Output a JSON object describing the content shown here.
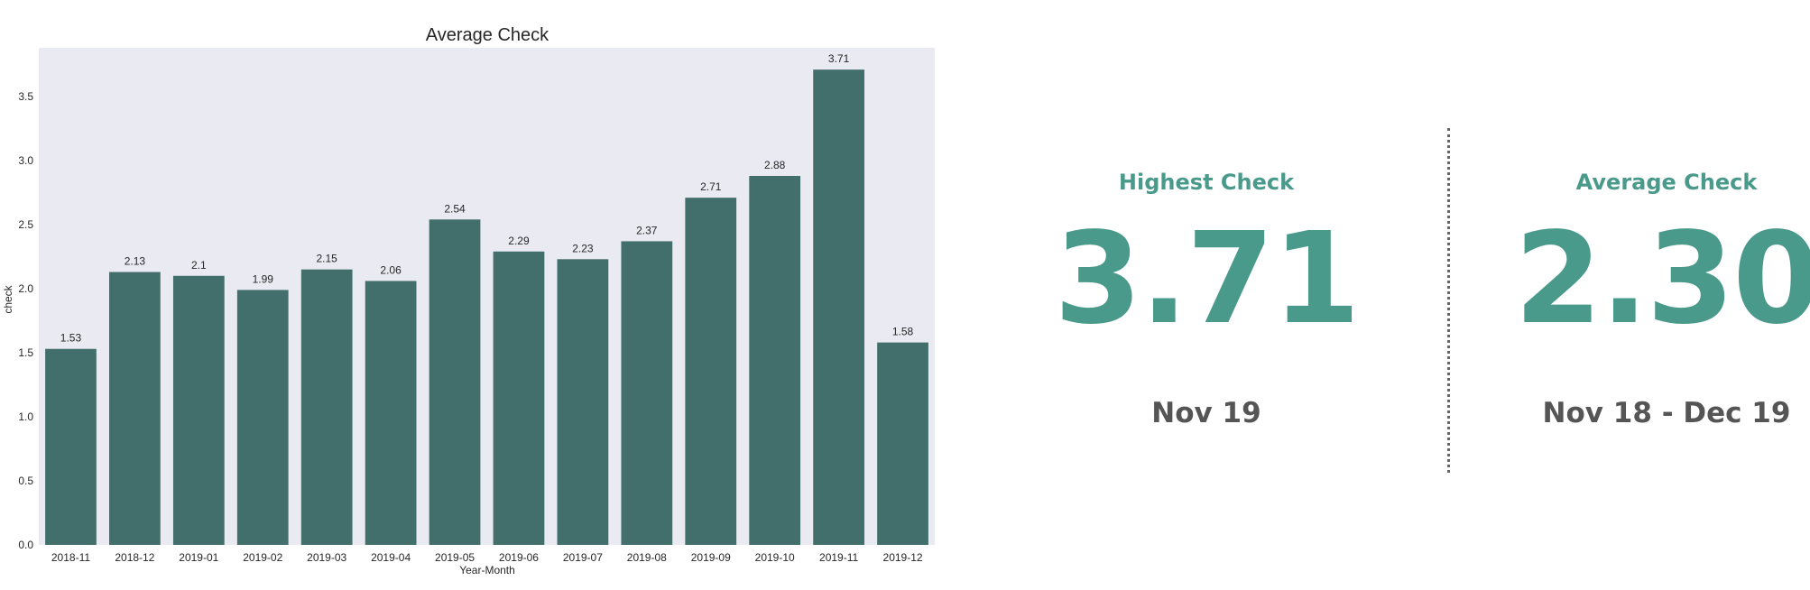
{
  "chart_data": {
    "type": "bar",
    "title": "Average Check",
    "xlabel": "Year-Month",
    "ylabel": "check",
    "categories": [
      "2018-11",
      "2018-12",
      "2019-01",
      "2019-02",
      "2019-03",
      "2019-04",
      "2019-05",
      "2019-06",
      "2019-07",
      "2019-08",
      "2019-09",
      "2019-10",
      "2019-11",
      "2019-12"
    ],
    "values": [
      1.53,
      2.13,
      2.1,
      1.99,
      2.15,
      2.06,
      2.54,
      2.29,
      2.23,
      2.37,
      2.71,
      2.88,
      3.71,
      1.58
    ],
    "value_labels": [
      "1.53",
      "2.13",
      "2.1",
      "1.99",
      "2.15",
      "2.06",
      "2.54",
      "2.29",
      "2.23",
      "2.37",
      "2.71",
      "2.88",
      "3.71",
      "1.58"
    ],
    "ylim": [
      0,
      3.88
    ],
    "yticks": [
      "0.0",
      "0.5",
      "1.0",
      "1.5",
      "2.0",
      "2.5",
      "3.0",
      "3.5"
    ],
    "ytick_values": [
      0,
      0.5,
      1.0,
      1.5,
      2.0,
      2.5,
      3.0,
      3.5
    ],
    "grid": false,
    "legend": "none",
    "bar_color": "#426e6c",
    "plot_background": "#eaeaf2"
  },
  "kpis": {
    "highest": {
      "title": "Highest Check",
      "value": "3.71",
      "period": "Nov 19"
    },
    "average": {
      "title": "Average Check",
      "value": "2.30",
      "period": "Nov 18 - Dec 19"
    },
    "accent_color": "#4a9a8c",
    "subtext_color": "#555555"
  }
}
